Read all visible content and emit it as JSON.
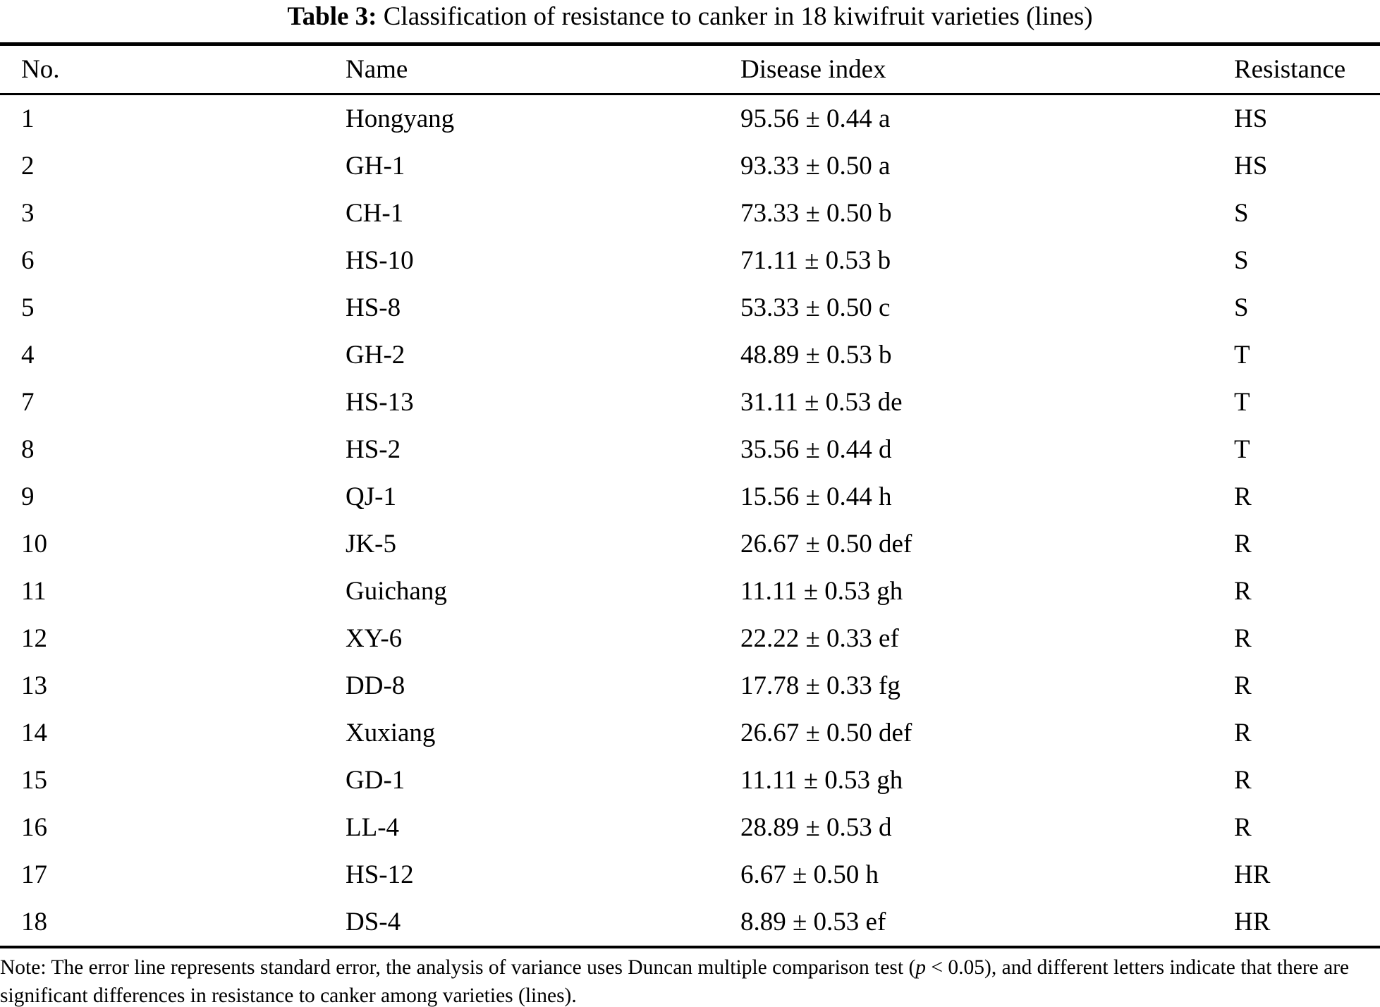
{
  "title": {
    "label": "Table 3:",
    "text": " Classification of resistance to canker in 18 kiwifruit varieties (lines)"
  },
  "table": {
    "headers": {
      "no": "No.",
      "name": "Name",
      "disease_index": "Disease index",
      "resistance": "Resistance"
    },
    "rows": [
      {
        "no": "1",
        "name": "Hongyang",
        "disease_index": "95.56 ± 0.44 a",
        "resistance": "HS"
      },
      {
        "no": "2",
        "name": "GH-1",
        "disease_index": "93.33 ± 0.50 a",
        "resistance": "HS"
      },
      {
        "no": "3",
        "name": "CH-1",
        "disease_index": "73.33 ± 0.50 b",
        "resistance": "S"
      },
      {
        "no": "6",
        "name": "HS-10",
        "disease_index": "71.11 ± 0.53 b",
        "resistance": "S"
      },
      {
        "no": "5",
        "name": "HS-8",
        "disease_index": "53.33 ± 0.50 c",
        "resistance": "S"
      },
      {
        "no": "4",
        "name": "GH-2",
        "disease_index": "48.89 ± 0.53 b",
        "resistance": "T"
      },
      {
        "no": "7",
        "name": "HS-13",
        "disease_index": "31.11 ± 0.53 de",
        "resistance": "T"
      },
      {
        "no": "8",
        "name": "HS-2",
        "disease_index": "35.56 ± 0.44 d",
        "resistance": "T"
      },
      {
        "no": "9",
        "name": "QJ-1",
        "disease_index": "15.56 ± 0.44 h",
        "resistance": "R"
      },
      {
        "no": "10",
        "name": "JK-5",
        "disease_index": "26.67 ± 0.50 def",
        "resistance": "R"
      },
      {
        "no": "11",
        "name": "Guichang",
        "disease_index": "11.11 ± 0.53 gh",
        "resistance": "R"
      },
      {
        "no": "12",
        "name": "XY-6",
        "disease_index": "22.22 ± 0.33 ef",
        "resistance": "R"
      },
      {
        "no": "13",
        "name": "DD-8",
        "disease_index": "17.78 ± 0.33 fg",
        "resistance": "R"
      },
      {
        "no": "14",
        "name": "Xuxiang",
        "disease_index": "26.67 ± 0.50 def",
        "resistance": "R"
      },
      {
        "no": "15",
        "name": "GD-1",
        "disease_index": "11.11 ± 0.53 gh",
        "resistance": "R"
      },
      {
        "no": "16",
        "name": "LL-4",
        "disease_index": "28.89 ± 0.53 d",
        "resistance": "R"
      },
      {
        "no": "17",
        "name": "HS-12",
        "disease_index": "6.67 ± 0.50 h",
        "resistance": "HR"
      },
      {
        "no": "18",
        "name": "DS-4",
        "disease_index": "8.89 ± 0.53 ef",
        "resistance": "HR"
      }
    ]
  },
  "note": {
    "prefix": "Note: The error line represents standard error, the analysis of variance uses Duncan multiple comparison test (",
    "p": "p",
    "suffix": " < 0.05), and different letters indicate that there are significant differences in resistance to canker among varieties (lines)."
  }
}
